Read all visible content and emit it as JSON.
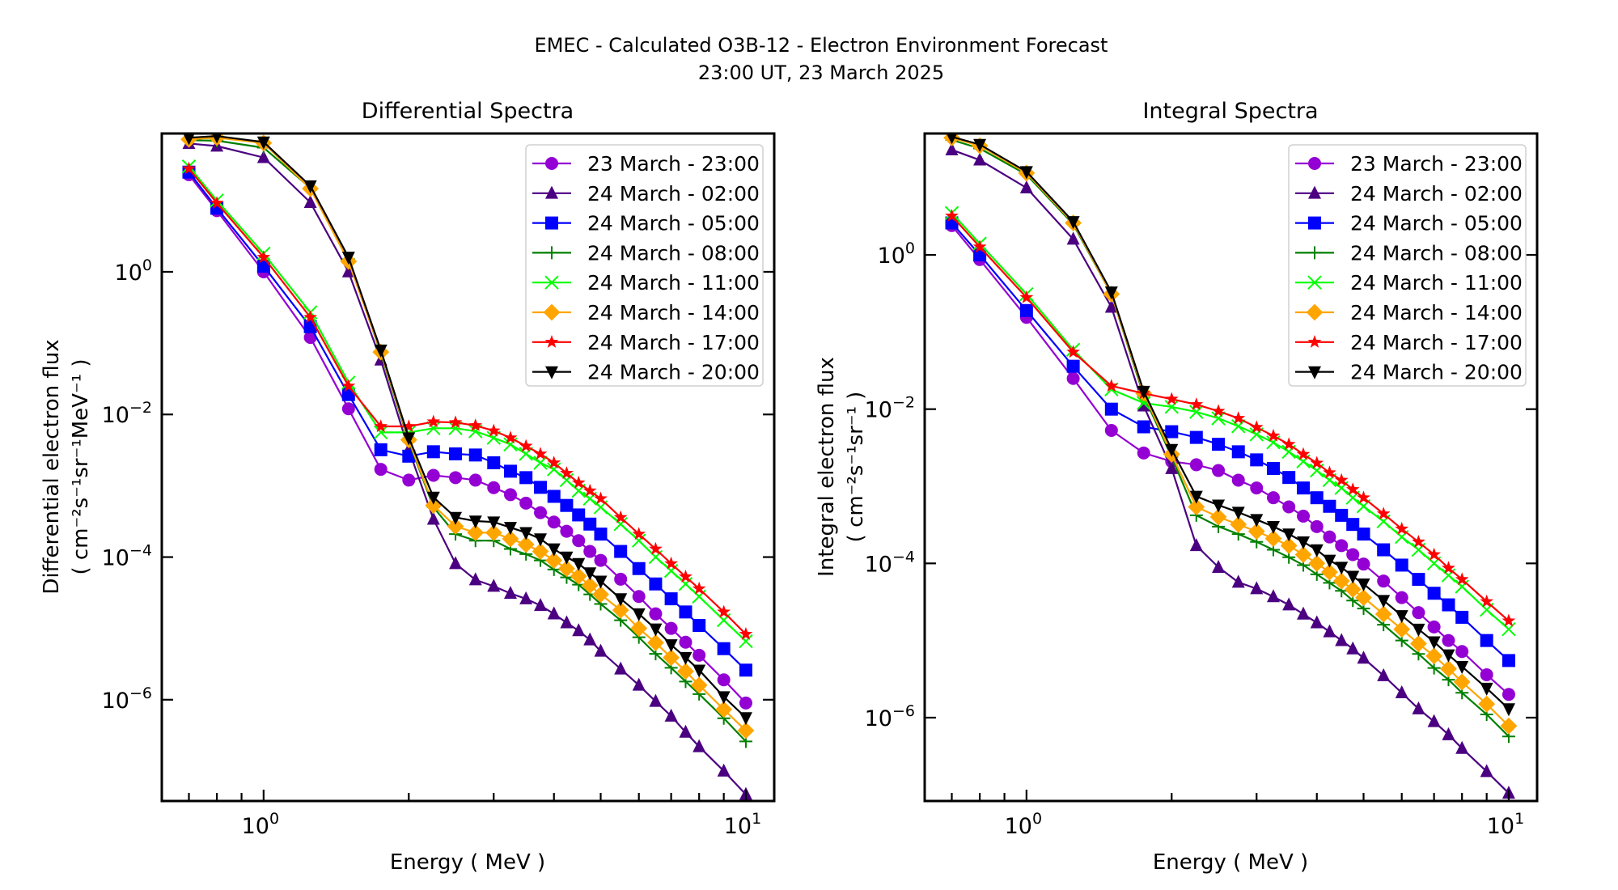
{
  "figure": {
    "suptitle_line1": "EMEC - Calculated O3B-12 - Electron Environment Forecast",
    "suptitle_line2": "23:00 UT, 23 March 2025"
  },
  "series_styles": [
    {
      "name": "23 March - 23:00",
      "color": "#9400D3",
      "marker": "circle"
    },
    {
      "name": "24 March - 02:00",
      "color": "#4B0082",
      "marker": "triangle-up"
    },
    {
      "name": "24 March - 05:00",
      "color": "#0000FF",
      "marker": "square"
    },
    {
      "name": "24 March - 08:00",
      "color": "#008000",
      "marker": "plus"
    },
    {
      "name": "24 March - 11:00",
      "color": "#00FF00",
      "marker": "x"
    },
    {
      "name": "24 March - 14:00",
      "color": "#FFA500",
      "marker": "diamond"
    },
    {
      "name": "24 March - 17:00",
      "color": "#FF0000",
      "marker": "star"
    },
    {
      "name": "24 March - 20:00",
      "color": "#000000",
      "marker": "triangle-down"
    }
  ],
  "chart_data": [
    {
      "type": "line",
      "title": "Differential Spectra",
      "xlabel": "Energy ( MeV )",
      "ylabel_line1": "Differential electron flux",
      "ylabel_line2": "( cm⁻²s⁻¹sr⁻¹MeV⁻¹ )",
      "xscale": "log",
      "yscale": "log",
      "xlim": [
        0.615,
        11.45
      ],
      "ylim": [
        3.8e-08,
        87
      ],
      "xticks": [
        {
          "value": 1,
          "label": "10",
          "exp": "0"
        },
        {
          "value": 10,
          "label": "10",
          "exp": "1"
        }
      ],
      "yticks": [
        {
          "value": 1,
          "label": "10",
          "exp": "0"
        },
        {
          "value": 0.01,
          "label": "10",
          "exp": "−2"
        },
        {
          "value": 0.0001,
          "label": "10",
          "exp": "−4"
        },
        {
          "value": 1e-06,
          "label": "10",
          "exp": "−6"
        }
      ],
      "legend_position": "top-right",
      "grid": false,
      "x": [
        0.7,
        0.8,
        1.0,
        1.25,
        1.5,
        1.75,
        2.0,
        2.25,
        2.5,
        2.75,
        3.0,
        3.25,
        3.5,
        3.75,
        4.0,
        4.25,
        4.5,
        4.75,
        5.0,
        5.5,
        6.0,
        6.5,
        7.0,
        7.5,
        8.0,
        9.0,
        10.0
      ],
      "series": [
        {
          "name": "23 March - 23:00",
          "values": [
            23,
            7.2,
            1.0,
            0.12,
            0.012,
            0.0017,
            0.0012,
            0.0014,
            0.0013,
            0.0012,
            0.00094,
            0.00075,
            0.00057,
            0.00042,
            0.00031,
            0.00023,
            0.00017,
            0.00012,
            9e-05,
            4.9e-05,
            2.8e-05,
            1.6e-05,
            1e-05,
            6.4e-06,
            4.2e-06,
            1.9e-06,
            9e-07
          ]
        },
        {
          "name": "24 March - 02:00",
          "values": [
            63,
            58,
            40,
            9.4,
            1.0,
            0.058,
            0.0032,
            0.00034,
            8.1e-05,
            4.8e-05,
            3.9e-05,
            3.1e-05,
            2.6e-05,
            2.1e-05,
            1.6e-05,
            1.2e-05,
            9.3e-06,
            6.9e-06,
            4.8e-06,
            2.7e-06,
            1.6e-06,
            9.5e-07,
            5.9e-07,
            3.5e-07,
            2.2e-07,
            1e-07,
            4.7e-08
          ]
        },
        {
          "name": "24 March - 05:00",
          "values": [
            25,
            7.8,
            1.2,
            0.17,
            0.019,
            0.0032,
            0.0026,
            0.003,
            0.0028,
            0.0027,
            0.0021,
            0.0016,
            0.0013,
            0.00095,
            0.00071,
            0.00053,
            0.00039,
            0.00029,
            0.00021,
            0.00012,
            6.9e-05,
            4.2e-05,
            2.6e-05,
            1.7e-05,
            1.1e-05,
            5.2e-06,
            2.6e-06
          ]
        },
        {
          "name": "24 March - 08:00",
          "values": [
            70,
            69,
            55,
            15,
            1.5,
            0.072,
            0.0042,
            0.0005,
            0.00021,
            0.00017,
            0.00017,
            0.00013,
            0.00011,
            9e-05,
            6.7e-05,
            5.2e-05,
            4.1e-05,
            3e-05,
            2.2e-05,
            1.3e-05,
            7.5e-06,
            4.4e-06,
            2.8e-06,
            1.8e-06,
            1.2e-06,
            5.5e-07,
            2.6e-07
          ]
        },
        {
          "name": "24 March - 11:00",
          "values": [
            30,
            10,
            1.8,
            0.27,
            0.028,
            0.0056,
            0.0056,
            0.0064,
            0.0064,
            0.0058,
            0.0047,
            0.0038,
            0.0028,
            0.0021,
            0.0017,
            0.0012,
            0.00085,
            0.00066,
            0.0005,
            0.00029,
            0.00017,
            0.0001,
            6.4e-05,
            4.2e-05,
            2.8e-05,
            1.3e-05,
            6.6e-06
          ]
        },
        {
          "name": "24 March - 14:00",
          "values": [
            72,
            76,
            64,
            14.7,
            1.4,
            0.075,
            0.0044,
            0.00053,
            0.00027,
            0.00022,
            0.00022,
            0.00018,
            0.00015,
            0.00012,
            9e-05,
            6.9e-05,
            5.4e-05,
            4e-05,
            3e-05,
            1.8e-05,
            1e-05,
            6.3e-06,
            3.9e-06,
            2.5e-06,
            1.6e-06,
            7.3e-07,
            3.7e-07
          ]
        },
        {
          "name": "24 March - 17:00",
          "values": [
            28,
            9.2,
            1.6,
            0.23,
            0.025,
            0.0068,
            0.0068,
            0.0079,
            0.0077,
            0.007,
            0.0059,
            0.0047,
            0.0036,
            0.0028,
            0.0021,
            0.0015,
            0.0011,
            0.00085,
            0.00066,
            0.00036,
            0.00021,
            0.00013,
            8.1e-05,
            5.3e-05,
            3.6e-05,
            1.7e-05,
            8.3e-06
          ]
        },
        {
          "name": "24 March - 20:00",
          "values": [
            76,
            80,
            66,
            16,
            1.6,
            0.08,
            0.0047,
            0.00069,
            0.00036,
            0.00032,
            0.00031,
            0.00026,
            0.00022,
            0.00018,
            0.00013,
            0.0001,
            8.1e-05,
            6e-05,
            4.6e-05,
            2.6e-05,
            1.6e-05,
            9.8e-06,
            5.9e-06,
            3.9e-06,
            2.6e-06,
            1.1e-06,
            5.6e-07
          ]
        }
      ]
    },
    {
      "type": "line",
      "title": "Integral Spectra",
      "xlabel": "Energy ( MeV )",
      "ylabel_line1": "Integral electron flux",
      "ylabel_line2": "( cm⁻²s⁻¹sr⁻¹ )",
      "xscale": "log",
      "yscale": "log",
      "xlim": [
        0.615,
        11.45
      ],
      "ylim": [
        8.3e-08,
        37.5
      ],
      "xticks": [
        {
          "value": 1,
          "label": "10",
          "exp": "0"
        },
        {
          "value": 10,
          "label": "10",
          "exp": "1"
        }
      ],
      "yticks": [
        {
          "value": 1,
          "label": "10",
          "exp": "0"
        },
        {
          "value": 0.01,
          "label": "10",
          "exp": "−2"
        },
        {
          "value": 0.0001,
          "label": "10",
          "exp": "−4"
        },
        {
          "value": 1e-06,
          "label": "10",
          "exp": "−6"
        }
      ],
      "legend_position": "top-right",
      "grid": false,
      "x": [
        0.7,
        0.8,
        1.0,
        1.25,
        1.5,
        1.75,
        2.0,
        2.25,
        2.5,
        2.75,
        3.0,
        3.25,
        3.5,
        3.75,
        4.0,
        4.25,
        4.5,
        4.75,
        5.0,
        5.5,
        6.0,
        6.5,
        7.0,
        7.5,
        8.0,
        9.0,
        10.0
      ],
      "series": [
        {
          "name": "23 March - 23:00",
          "values": [
            2.4,
            0.87,
            0.155,
            0.025,
            0.0053,
            0.0027,
            0.0021,
            0.0019,
            0.0016,
            0.0012,
            0.00095,
            0.00071,
            0.00054,
            0.00041,
            0.0003,
            0.00022,
            0.00017,
            0.00013,
            9.8e-05,
            5.9e-05,
            3.6e-05,
            2.3e-05,
            1.5e-05,
            1e-05,
            7.2e-06,
            3.6e-06,
            2e-06
          ]
        },
        {
          "name": "24 March - 02:00",
          "values": [
            23,
            17,
            7.4,
            1.6,
            0.21,
            0.011,
            0.0017,
            0.00017,
            8.9e-05,
            5.7e-05,
            4.7e-05,
            3.7e-05,
            2.9e-05,
            2.2e-05,
            1.7e-05,
            1.3e-05,
            1e-05,
            7.8e-06,
            5.9e-06,
            3.5e-06,
            2.1e-06,
            1.3e-06,
            8.9e-07,
            6e-07,
            4e-07,
            2e-07,
            1.05e-07
          ]
        },
        {
          "name": "24 March - 05:00",
          "values": [
            2.6,
            1.0,
            0.19,
            0.036,
            0.01,
            0.0059,
            0.0051,
            0.0043,
            0.0035,
            0.0028,
            0.0022,
            0.0017,
            0.0013,
            0.00095,
            0.00071,
            0.00055,
            0.00042,
            0.00032,
            0.00024,
            0.00015,
            9.5e-05,
            6.2e-05,
            4.1e-05,
            2.9e-05,
            2e-05,
            1e-05,
            5.5e-06
          ]
        },
        {
          "name": "24 March - 08:00",
          "values": [
            31,
            24,
            11,
            2.5,
            0.31,
            0.015,
            0.0024,
            0.00042,
            0.0003,
            0.00024,
            0.00019,
            0.00015,
            0.00012,
            9.5e-05,
            7.2e-05,
            5.6e-05,
            4.4e-05,
            3.3e-05,
            2.6e-05,
            1.6e-05,
            1e-05,
            6.7e-06,
            4.4e-06,
            3.1e-06,
            2.1e-06,
            1.1e-06,
            5.7e-07
          ]
        },
        {
          "name": "24 March - 11:00",
          "values": [
            3.5,
            1.4,
            0.31,
            0.059,
            0.018,
            0.012,
            0.0107,
            0.0092,
            0.0076,
            0.006,
            0.0047,
            0.0037,
            0.0028,
            0.0021,
            0.0016,
            0.0012,
            0.00095,
            0.00071,
            0.00055,
            0.00035,
            0.00022,
            0.00015,
            0.0001,
            7e-05,
            5e-05,
            2.5e-05,
            1.4e-05
          ]
        },
        {
          "name": "24 March - 14:00",
          "values": [
            33,
            26,
            11.5,
            2.6,
            0.31,
            0.016,
            0.0026,
            0.00054,
            0.0004,
            0.00032,
            0.00026,
            0.00021,
            0.00017,
            0.00013,
            0.0001,
            7.7e-05,
            5.9e-05,
            4.6e-05,
            3.6e-05,
            2.2e-05,
            1.4e-05,
            9.1e-06,
            6.3e-06,
            4.3e-06,
            2.9e-06,
            1.5e-06,
            7.8e-07
          ]
        },
        {
          "name": "24 March - 17:00",
          "values": [
            3.2,
            1.27,
            0.28,
            0.055,
            0.02,
            0.016,
            0.0135,
            0.0115,
            0.0094,
            0.0076,
            0.0058,
            0.0045,
            0.0035,
            0.0026,
            0.002,
            0.0015,
            0.0012,
            0.00091,
            0.00071,
            0.00044,
            0.00028,
            0.00019,
            0.00013,
            8.7e-05,
            6.2e-05,
            3.2e-05,
            1.8e-05
          ]
        },
        {
          "name": "24 March - 20:00",
          "values": [
            34,
            27,
            12,
            2.7,
            0.33,
            0.017,
            0.003,
            0.00074,
            0.00057,
            0.00046,
            0.00037,
            0.0003,
            0.00024,
            0.00019,
            0.00015,
            0.00011,
            8.9e-05,
            6.8e-05,
            5.4e-05,
            3.3e-05,
            2.1e-05,
            1.4e-05,
            9.6e-06,
            6.5e-06,
            4.6e-06,
            2.4e-06,
            1.3e-06
          ]
        }
      ]
    }
  ]
}
